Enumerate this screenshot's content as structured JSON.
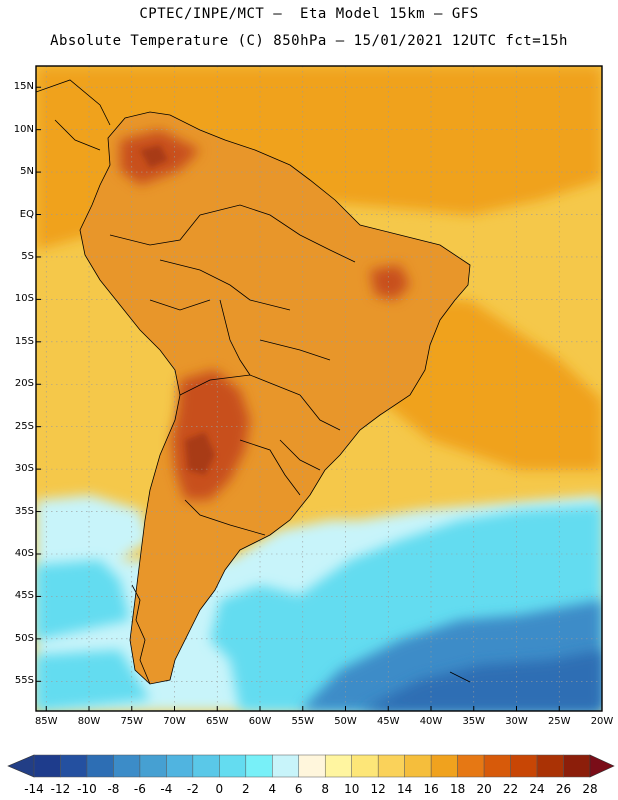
{
  "header": {
    "title_line1": "CPTEC/INPE/MCT –  Eta Model 15km – GFS",
    "title_line2": "Absolute Temperature (C) 850hPa – 15/01/2021 12UTC fct=15h"
  },
  "map": {
    "lat_labels": [
      "15N",
      "10N",
      "5N",
      "EQ",
      "5S",
      "10S",
      "15S",
      "20S",
      "25S",
      "30S",
      "35S",
      "40S",
      "45S",
      "50S",
      "55S"
    ],
    "lon_labels": [
      "85W",
      "80W",
      "75W",
      "70W",
      "65W",
      "60W",
      "55W",
      "50W",
      "45W",
      "40W",
      "35W",
      "30W",
      "25W",
      "20W"
    ],
    "lat_values": [
      15,
      10,
      5,
      0,
      -5,
      -10,
      -15,
      -20,
      -25,
      -30,
      -35,
      -40,
      -45,
      -50,
      -55
    ],
    "lon_values": [
      -85,
      -80,
      -75,
      -70,
      -65,
      -60,
      -55,
      -50,
      -45,
      -40,
      -35,
      -30,
      -25,
      -20
    ]
  },
  "colorbar": {
    "labels": [
      "-14",
      "-12",
      "-10",
      "-8",
      "-6",
      "-4",
      "-2",
      "0",
      "2",
      "4",
      "6",
      "8",
      "10",
      "12",
      "14",
      "16",
      "18",
      "20",
      "22",
      "24",
      "26",
      "28"
    ],
    "colors": [
      "#1e3c8c",
      "#2450a0",
      "#2d6eb4",
      "#3c8cc8",
      "#46a0d2",
      "#50b4e0",
      "#5ac8e8",
      "#64dcf0",
      "#78f0f8",
      "#c8f4fa",
      "#fff6dc",
      "#fff5a0",
      "#fde678",
      "#fad25a",
      "#f5be3c",
      "#f0a21e",
      "#e67814",
      "#d75a0a",
      "#c84605",
      "#aa3205",
      "#8c1e0a"
    ],
    "low_arrow_color": "#223e86",
    "high_arrow_color": "#7a0d18"
  },
  "fill_colors": {
    "sea_base": "#f5c84a",
    "sea_warm": "#f0a21e",
    "cold_light": "#c8f4fa",
    "cold_mid": "#64dcf0",
    "cold_deep": "#3c8cc8",
    "cold_deeper": "#2d6eb4",
    "land_base": "#e8962a",
    "land_hot": "#c8501a",
    "land_hotter": "#a83a14",
    "coast": "#000000"
  }
}
